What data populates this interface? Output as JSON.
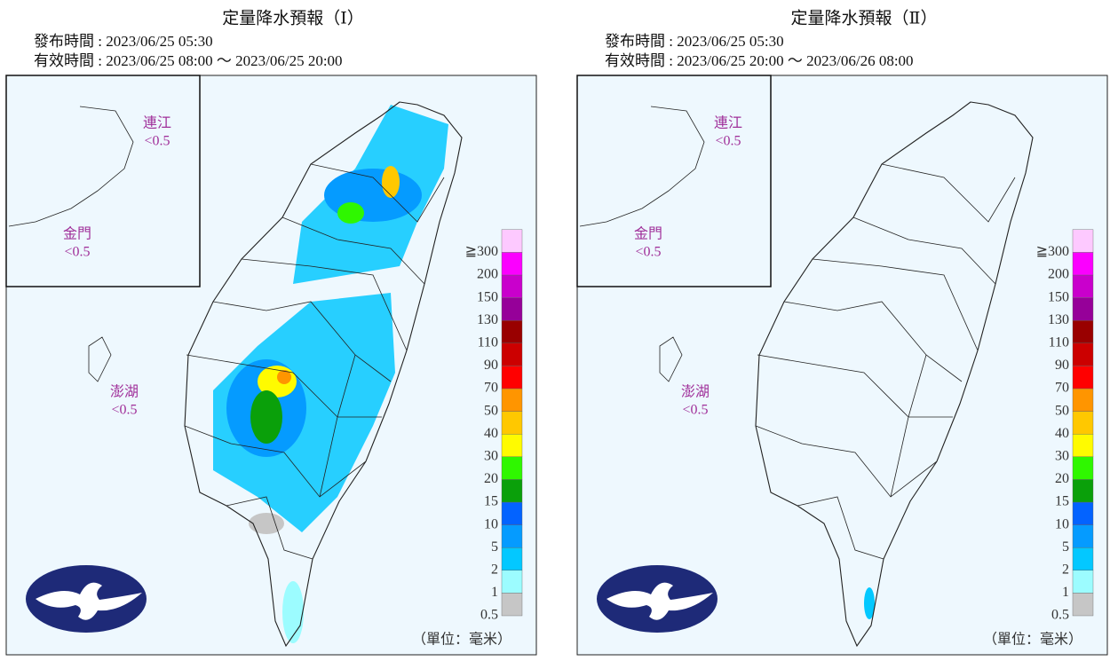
{
  "panels": [
    {
      "title": "定量降水預報（Ⅰ）",
      "issue_time": "發布時間 : 2023/06/25 05:30",
      "valid_time": "有效時間 : 2023/06/25 08:00 ～ 2023/06/25 20:00",
      "islands": [
        {
          "name": "連江",
          "value": "<0.5"
        },
        {
          "name": "金門",
          "value": "<0.5"
        },
        {
          "name": "澎湖",
          "value": "<0.5"
        }
      ]
    },
    {
      "title": "定量降水預報（Ⅱ）",
      "issue_time": "發布時間 : 2023/06/25 05:30",
      "valid_time": "有效時間 : 2023/06/25 20:00 ～ 2023/06/26 08:00",
      "islands": [
        {
          "name": "連江",
          "value": "<0.5"
        },
        {
          "name": "金門",
          "value": "<0.5"
        },
        {
          "name": "澎湖",
          "value": "<0.5"
        }
      ]
    }
  ],
  "legend": {
    "levels": [
      "0.5",
      "1",
      "2",
      "5",
      "10",
      "15",
      "20",
      "30",
      "40",
      "50",
      "70",
      "90",
      "110",
      "130",
      "150",
      "200",
      "≧300"
    ],
    "colors": [
      "#c6c6c6",
      "#9cfcff",
      "#03c8ff",
      "#059bff",
      "#0363ff",
      "#0aa00a",
      "#2ff700",
      "#fffb00",
      "#ffc800",
      "#ff9500",
      "#ff0000",
      "#cc0000",
      "#990000",
      "#960099",
      "#c900cc",
      "#fb00ff",
      "#fdc9ff"
    ],
    "unit": "（單位：毫米）"
  }
}
